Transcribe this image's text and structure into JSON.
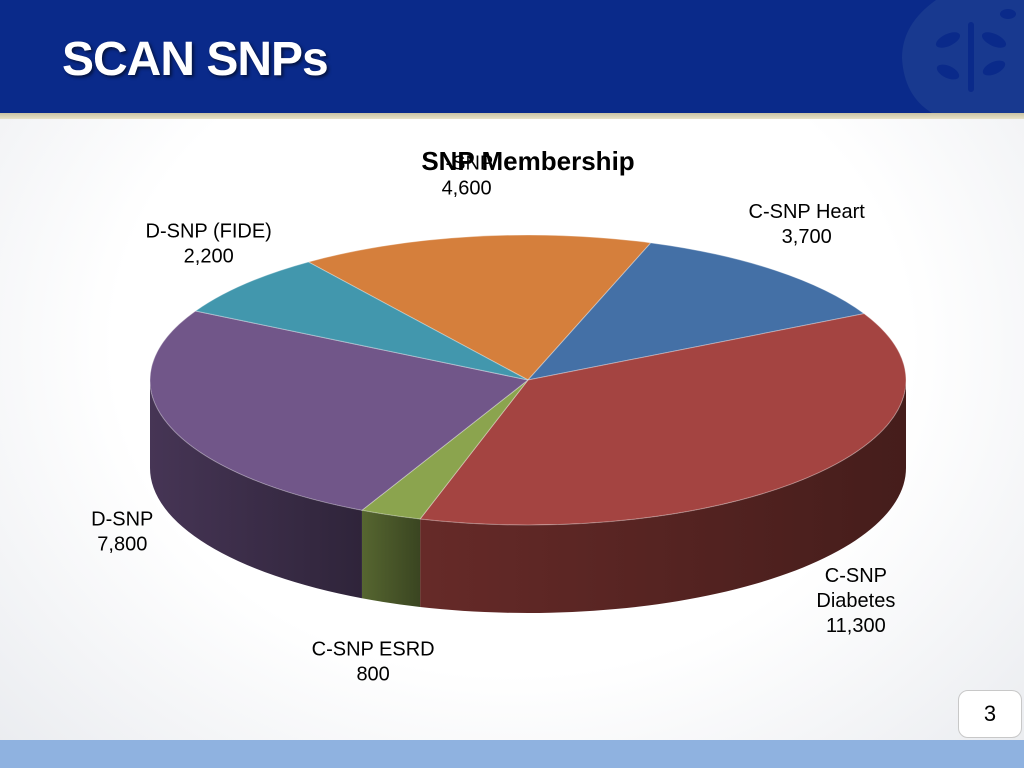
{
  "slide": {
    "title": "SCAN SNPs",
    "page_number": "3"
  },
  "chart_data": {
    "type": "pie",
    "title": "SNP Membership",
    "slices": [
      {
        "name": "I-SNP",
        "value": 4600,
        "value_label": "4,600",
        "color": "#d57f3c"
      },
      {
        "name": "C-SNP Heart",
        "value": 3700,
        "value_label": "3,700",
        "color": "#4470a6"
      },
      {
        "name": "C-SNP Diabetes",
        "value": 11300,
        "value_label": "11,300",
        "color": "#a44441"
      },
      {
        "name": "C-SNP ESRD",
        "value": 800,
        "value_label": "800",
        "color": "#8ba44e"
      },
      {
        "name": "D-SNP",
        "value": 7800,
        "value_label": "7,800",
        "color": "#715689"
      },
      {
        "name": "D-SNP (FIDE)",
        "value": 2200,
        "value_label": "2,200",
        "color": "#4297ad"
      }
    ]
  }
}
